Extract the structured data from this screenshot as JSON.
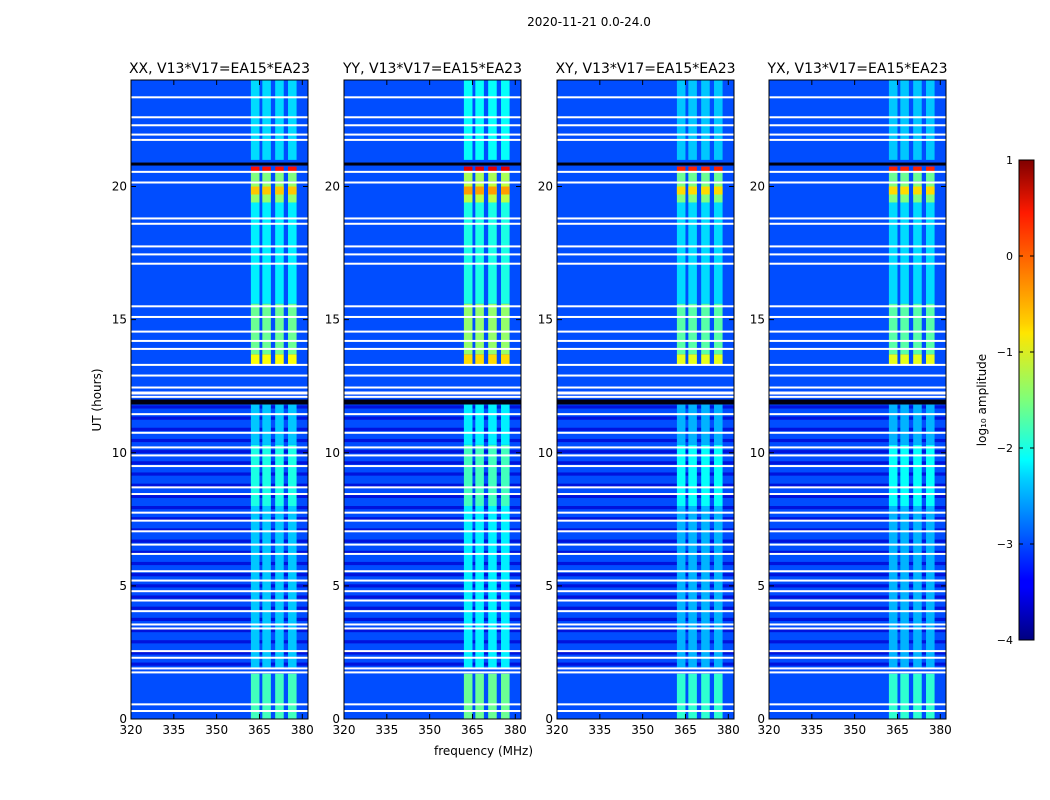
{
  "figure": {
    "suptitle": "2020-11-21 0.0-24.0",
    "xlabel": "frequency (MHz)",
    "ylabel": "UT (hours)"
  },
  "colorbar": {
    "label": "log₁₀ amplitude",
    "range": [
      -4,
      1
    ],
    "ticks": [
      1,
      0,
      -1,
      -2,
      -3,
      -4
    ],
    "tick_labels": [
      "1",
      "0",
      "−1",
      "−2",
      "−3",
      "−4"
    ],
    "colormap": "jet"
  },
  "chart_data": {
    "type": "heatmap",
    "x_range_mhz": [
      320,
      382
    ],
    "y_range_hours": [
      0,
      24
    ],
    "x_ticks": [
      320,
      335,
      350,
      365,
      380
    ],
    "y_ticks": [
      0,
      5,
      10,
      15,
      20
    ],
    "panels": [
      {
        "title": "XX, V13*V17=EA15*EA23",
        "pol": "XX",
        "show_xlabel": false
      },
      {
        "title": "YY, V13*V17=EA15*EA23",
        "pol": "YY",
        "show_xlabel": true
      },
      {
        "title": "XY, V13*V17=EA15*EA23",
        "pol": "XY",
        "show_xlabel": false
      },
      {
        "title": "YX, V13*V17=EA15*EA23",
        "pol": "YX",
        "show_xlabel": false
      }
    ],
    "flagged_times_hours": [
      0.3,
      0.55,
      1.75,
      1.9,
      2.3,
      2.55,
      3.4,
      3.55,
      4.05,
      4.45,
      4.8,
      5.2,
      5.55,
      6.2,
      6.55,
      7.05,
      7.45,
      7.75,
      8.45,
      8.7,
      9.5,
      9.9,
      10.2,
      10.75,
      11.45,
      11.85,
      12.1,
      12.25,
      12.45,
      12.9,
      13.3,
      13.9,
      14.2,
      14.55,
      15.1,
      15.5,
      17.1,
      17.45,
      17.75,
      18.6,
      18.8,
      20.15,
      20.55,
      20.85,
      21.75,
      21.95,
      22.3,
      22.6,
      23.35
    ],
    "background_log_amp": -3.0,
    "rfi_band_mhz": [
      362,
      380
    ],
    "rfi_subbands_mhz": [
      [
        362,
        365
      ],
      [
        366,
        369
      ],
      [
        370.5,
        373.5
      ],
      [
        375,
        378
      ]
    ],
    "rfi_segments": [
      {
        "t_start": 0.0,
        "t_end": 1.7,
        "log_amp": -1.8
      },
      {
        "t_start": 1.9,
        "t_end": 8.0,
        "log_amp": -2.4
      },
      {
        "t_start": 8.0,
        "t_end": 10.3,
        "log_amp": -2.0
      },
      {
        "t_start": 10.3,
        "t_end": 11.9,
        "log_amp": -2.4
      },
      {
        "t_start": 13.3,
        "t_end": 13.7,
        "log_amp": -0.9
      },
      {
        "t_start": 13.7,
        "t_end": 15.6,
        "log_amp": -1.6
      },
      {
        "t_start": 15.6,
        "t_end": 19.4,
        "log_amp": -2.2
      },
      {
        "t_start": 19.4,
        "t_end": 20.2,
        "log_amp": -1.4
      },
      {
        "t_start": 19.7,
        "t_end": 20.0,
        "log_amp": -0.6
      },
      {
        "t_start": 20.2,
        "t_end": 20.55,
        "log_amp": -1.5
      },
      {
        "t_start": 20.55,
        "t_end": 20.75,
        "log_amp": 0.3
      },
      {
        "t_start": 21.0,
        "t_end": 24.0,
        "log_amp": -2.3
      }
    ]
  }
}
